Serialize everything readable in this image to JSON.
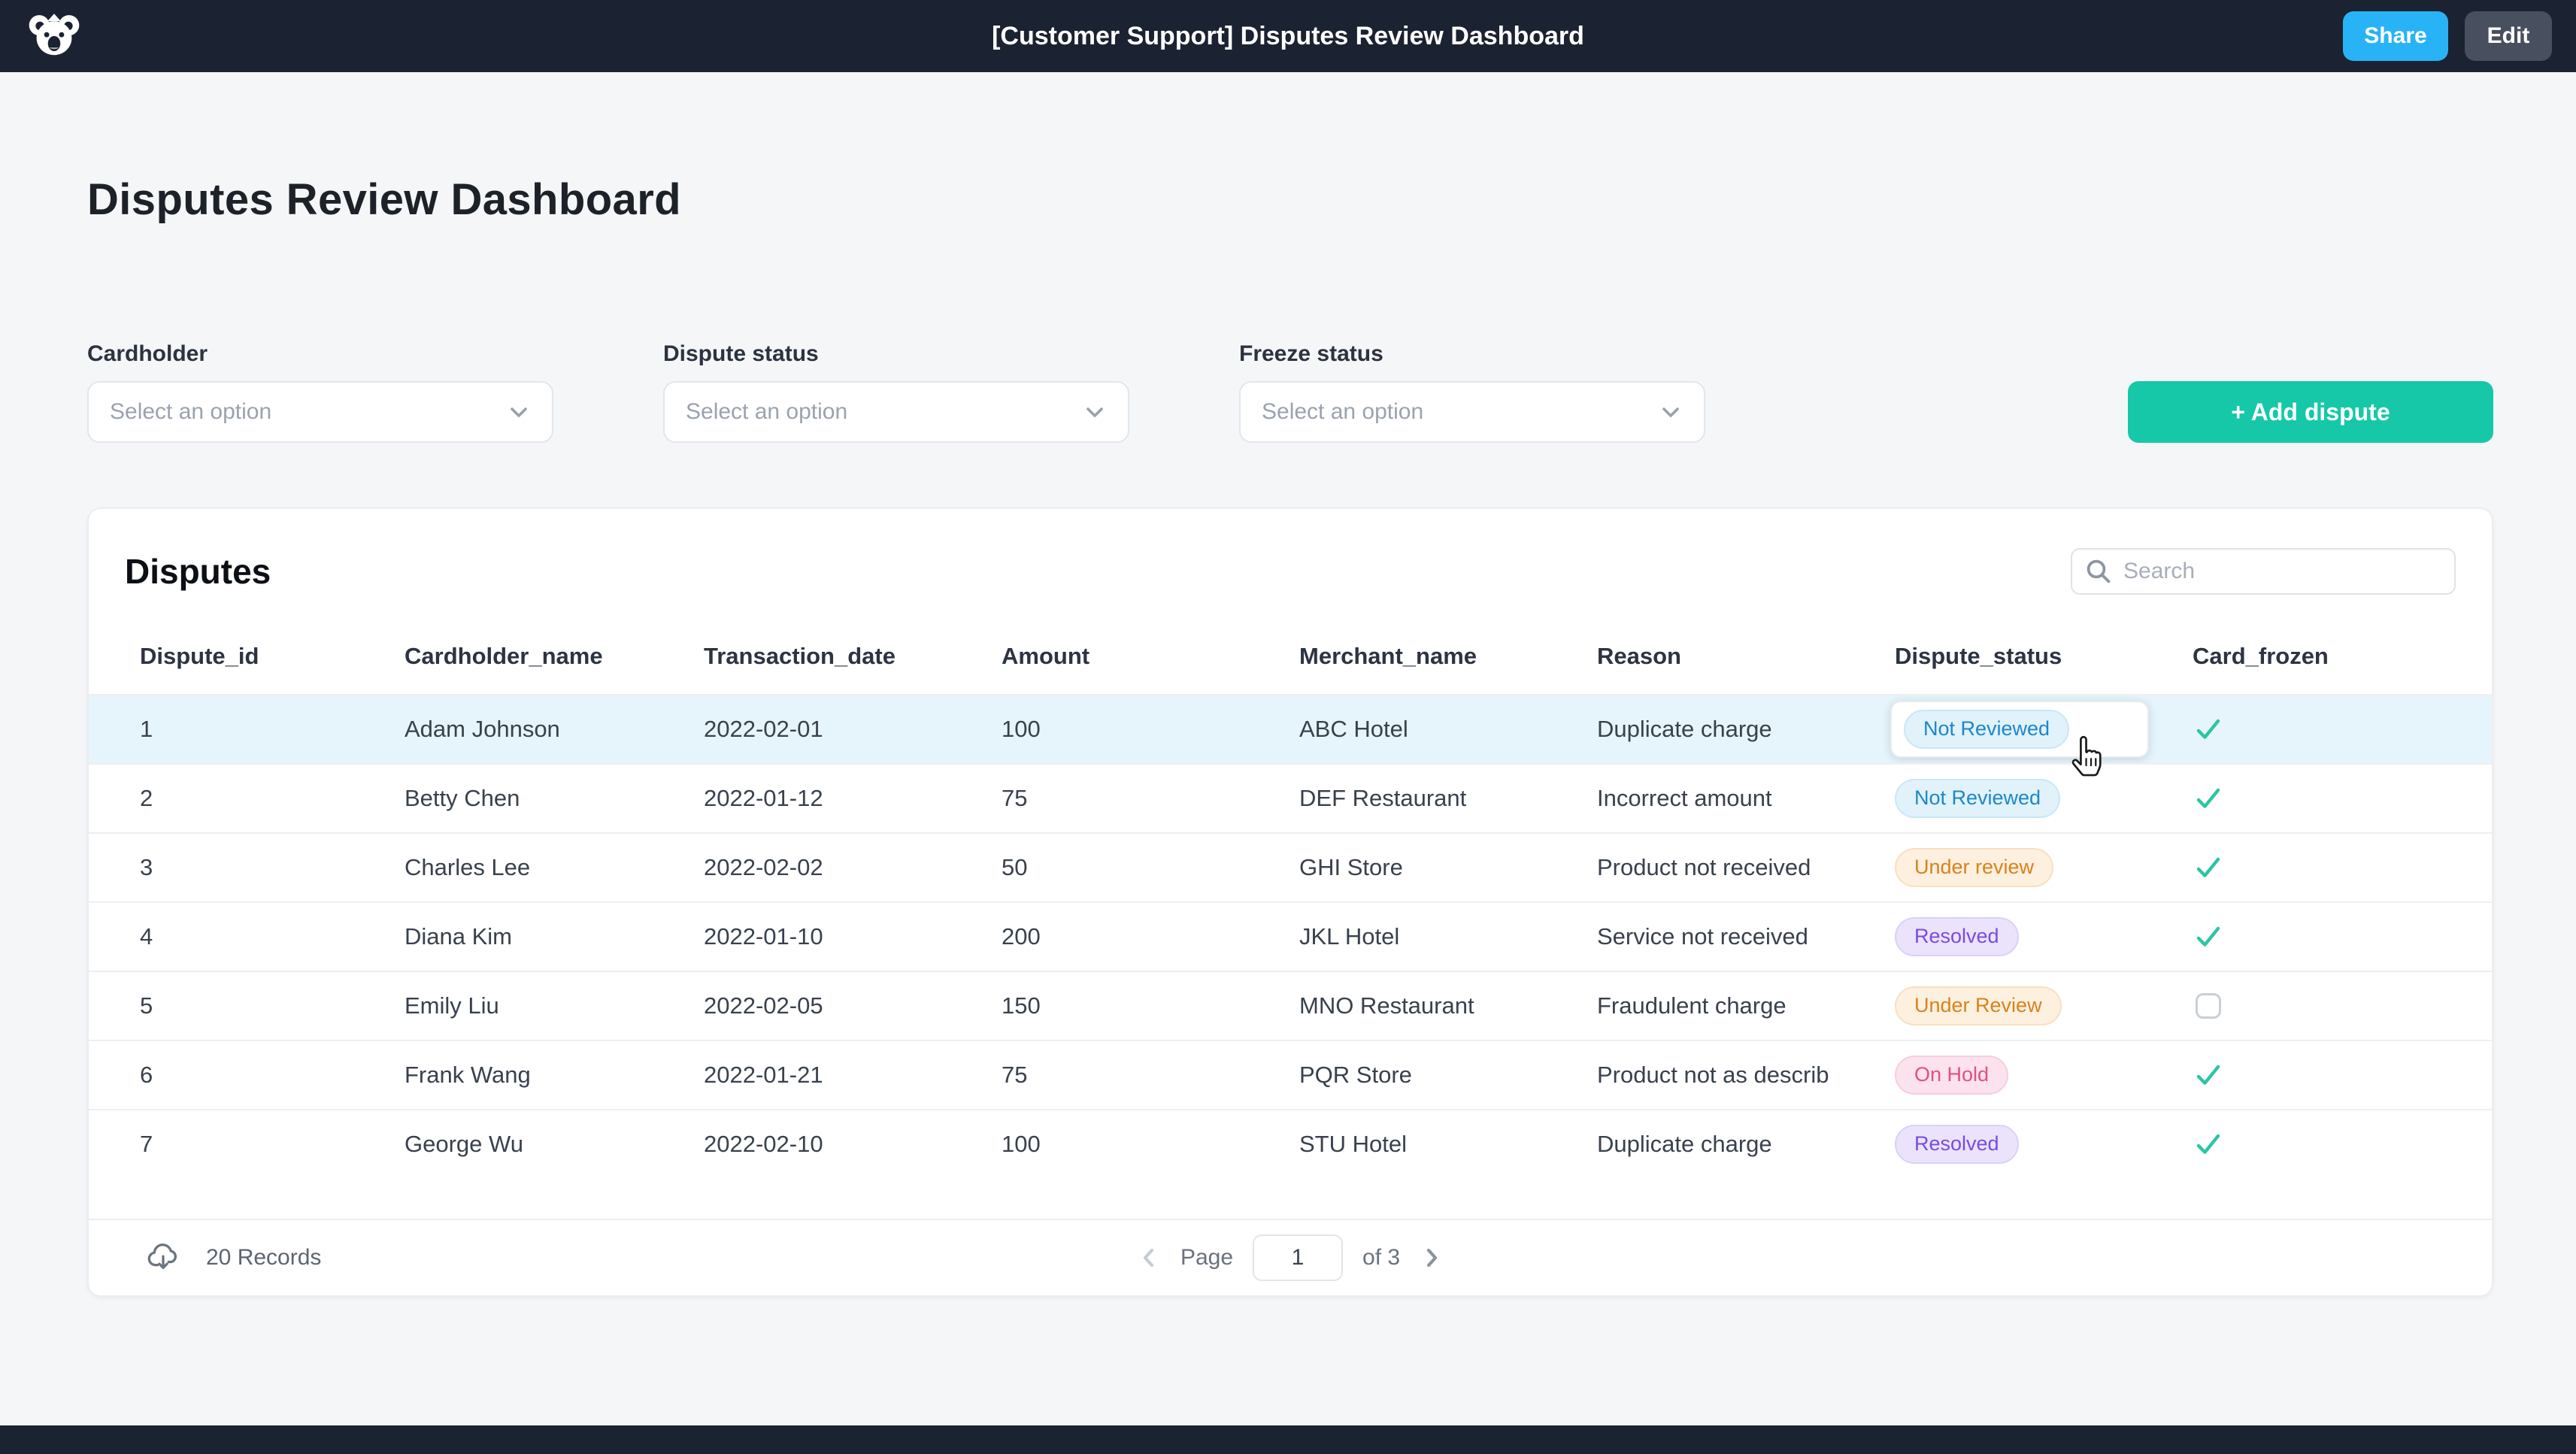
{
  "topbar": {
    "title": "[Customer Support] Disputes Review Dashboard",
    "share_label": "Share",
    "edit_label": "Edit"
  },
  "page_title": "Disputes Review Dashboard",
  "filters": [
    {
      "label": "Cardholder",
      "placeholder": "Select an option"
    },
    {
      "label": "Dispute status",
      "placeholder": "Select an option"
    },
    {
      "label": "Freeze status",
      "placeholder": "Select an option"
    }
  ],
  "add_dispute_label": "+ Add dispute",
  "disputes": {
    "title": "Disputes",
    "search_placeholder": "Search",
    "columns": [
      "Dispute_id",
      "Cardholder_name",
      "Transaction_date",
      "Amount",
      "Merchant_name",
      "Reason",
      "Dispute_status",
      "Card_frozen"
    ],
    "column_keys": [
      "dispute_id",
      "cardholder_name",
      "transaction_date",
      "amount",
      "merchant_name",
      "reason",
      "dispute_status",
      "card_frozen"
    ],
    "rows": [
      {
        "dispute_id": "1",
        "cardholder_name": "Adam Johnson",
        "transaction_date": "2022-02-01",
        "amount": "100",
        "merchant_name": "ABC Hotel",
        "reason": "Duplicate charge",
        "dispute_status": "Not Reviewed",
        "status_variant": "blue",
        "card_frozen": true,
        "highlighted": true,
        "status_editing": true
      },
      {
        "dispute_id": "2",
        "cardholder_name": "Betty Chen",
        "transaction_date": "2022-01-12",
        "amount": "75",
        "merchant_name": "DEF Restaurant",
        "reason": "Incorrect amount",
        "dispute_status": "Not Reviewed",
        "status_variant": "blue",
        "card_frozen": true,
        "highlighted": false,
        "status_editing": false
      },
      {
        "dispute_id": "3",
        "cardholder_name": "Charles Lee",
        "transaction_date": "2022-02-02",
        "amount": "50",
        "merchant_name": "GHI Store",
        "reason": "Product not received",
        "dispute_status": "Under review",
        "status_variant": "orange",
        "card_frozen": true,
        "highlighted": false,
        "status_editing": false
      },
      {
        "dispute_id": "4",
        "cardholder_name": "Diana Kim",
        "transaction_date": "2022-01-10",
        "amount": "200",
        "merchant_name": "JKL Hotel",
        "reason": "Service not received",
        "dispute_status": "Resolved",
        "status_variant": "purple",
        "card_frozen": true,
        "highlighted": false,
        "status_editing": false
      },
      {
        "dispute_id": "5",
        "cardholder_name": "Emily Liu",
        "transaction_date": "2022-02-05",
        "amount": "150",
        "merchant_name": "MNO Restaurant",
        "reason": "Fraudulent charge",
        "dispute_status": "Under Review",
        "status_variant": "orange",
        "card_frozen": false,
        "highlighted": false,
        "status_editing": false
      },
      {
        "dispute_id": "6",
        "cardholder_name": "Frank Wang",
        "transaction_date": "2022-01-21",
        "amount": "75",
        "merchant_name": "PQR Store",
        "reason": "Product not as describ",
        "dispute_status": "On Hold",
        "status_variant": "pink",
        "card_frozen": true,
        "highlighted": false,
        "status_editing": false
      },
      {
        "dispute_id": "7",
        "cardholder_name": "George Wu",
        "transaction_date": "2022-02-10",
        "amount": "100",
        "merchant_name": "STU Hotel",
        "reason": "Duplicate charge",
        "dispute_status": "Resolved",
        "status_variant": "purple",
        "card_frozen": true,
        "highlighted": false,
        "status_editing": false
      }
    ],
    "footer": {
      "records": "20 Records",
      "page_label": "Page",
      "page_value": "1",
      "total_label": "of 3"
    }
  },
  "status_variants": {
    "blue": {
      "bg": "#e1f2fb",
      "fg": "#1d87c9",
      "border": "#c9e7f7"
    },
    "orange": {
      "bg": "#fdf0df",
      "fg": "#d8821d",
      "border": "#f7e0c2"
    },
    "purple": {
      "bg": "#eae3fb",
      "fg": "#7a4be0",
      "border": "#ddd0f5"
    },
    "pink": {
      "bg": "#fbe2ed",
      "fg": "#e05086",
      "border": "#f6cde0"
    }
  },
  "colors": {
    "topbar_bg": "#1b2231",
    "share_button": "#29b3f7",
    "edit_button": "#484f5f",
    "add_button": "#16c8a8",
    "page_bg": "#f5f6f8",
    "row_highlight": "#e6f5fc",
    "check": "#2cc5a2"
  }
}
